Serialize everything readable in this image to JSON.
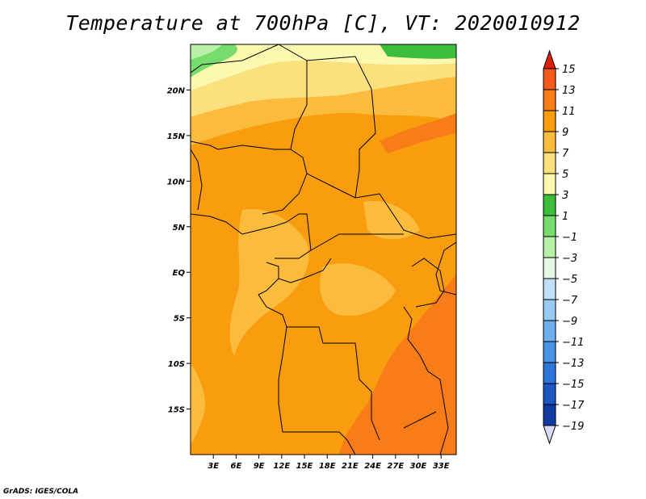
{
  "title": "Temperature at 700hPa [C], VT: 2020010912",
  "footer": "GrADS: IGES/COLA",
  "map": {
    "lon_range": [
      0,
      35
    ],
    "lat_range": [
      -20,
      25
    ],
    "lon_ticks": [
      {
        "value": 3,
        "label": "3E"
      },
      {
        "value": 6,
        "label": "6E"
      },
      {
        "value": 9,
        "label": "9E"
      },
      {
        "value": 12,
        "label": "12E"
      },
      {
        "value": 15,
        "label": "15E"
      },
      {
        "value": 18,
        "label": "18E"
      },
      {
        "value": 21,
        "label": "21E"
      },
      {
        "value": 24,
        "label": "24E"
      },
      {
        "value": 27,
        "label": "27E"
      },
      {
        "value": 30,
        "label": "30E"
      },
      {
        "value": 33,
        "label": "33E"
      }
    ],
    "lat_ticks": [
      {
        "value": 20,
        "label": "20N"
      },
      {
        "value": 15,
        "label": "15N"
      },
      {
        "value": 10,
        "label": "10N"
      },
      {
        "value": 5,
        "label": "5N"
      },
      {
        "value": 0,
        "label": "EQ"
      },
      {
        "value": -5,
        "label": "5S"
      },
      {
        "value": -10,
        "label": "10S"
      },
      {
        "value": -15,
        "label": "15S"
      }
    ]
  },
  "colorbar": {
    "levels": [
      {
        "value": "15",
        "color": "#e82c0a"
      },
      {
        "value": "13",
        "color": "#f55a1c"
      },
      {
        "value": "11",
        "color": "#f87d18"
      },
      {
        "value": "9",
        "color": "#f99d0f"
      },
      {
        "value": "7",
        "color": "#fbbb3c"
      },
      {
        "value": "5",
        "color": "#fde07e"
      },
      {
        "value": "3",
        "color": "#fdf8b0"
      },
      {
        "value": "1",
        "color": "#3cbd3c"
      },
      {
        "value": "−1",
        "color": "#76dd6c"
      },
      {
        "value": "−3",
        "color": "#b8f0a8"
      },
      {
        "value": "−5",
        "color": "#e4f6e4"
      },
      {
        "value": "−7",
        "color": "#c0e0f8"
      },
      {
        "value": "−9",
        "color": "#98cbf4"
      },
      {
        "value": "−11",
        "color": "#6eb0ee"
      },
      {
        "value": "−13",
        "color": "#4a94e6"
      },
      {
        "value": "−15",
        "color": "#2f74d8"
      },
      {
        "value": "−17",
        "color": "#1d55c2"
      },
      {
        "value": "−19",
        "color": "#0f3aa2"
      }
    ],
    "top_color": "#dc1e0a",
    "bottom_color": "#0a1a6e",
    "under_color": "#d8dcf4"
  }
}
